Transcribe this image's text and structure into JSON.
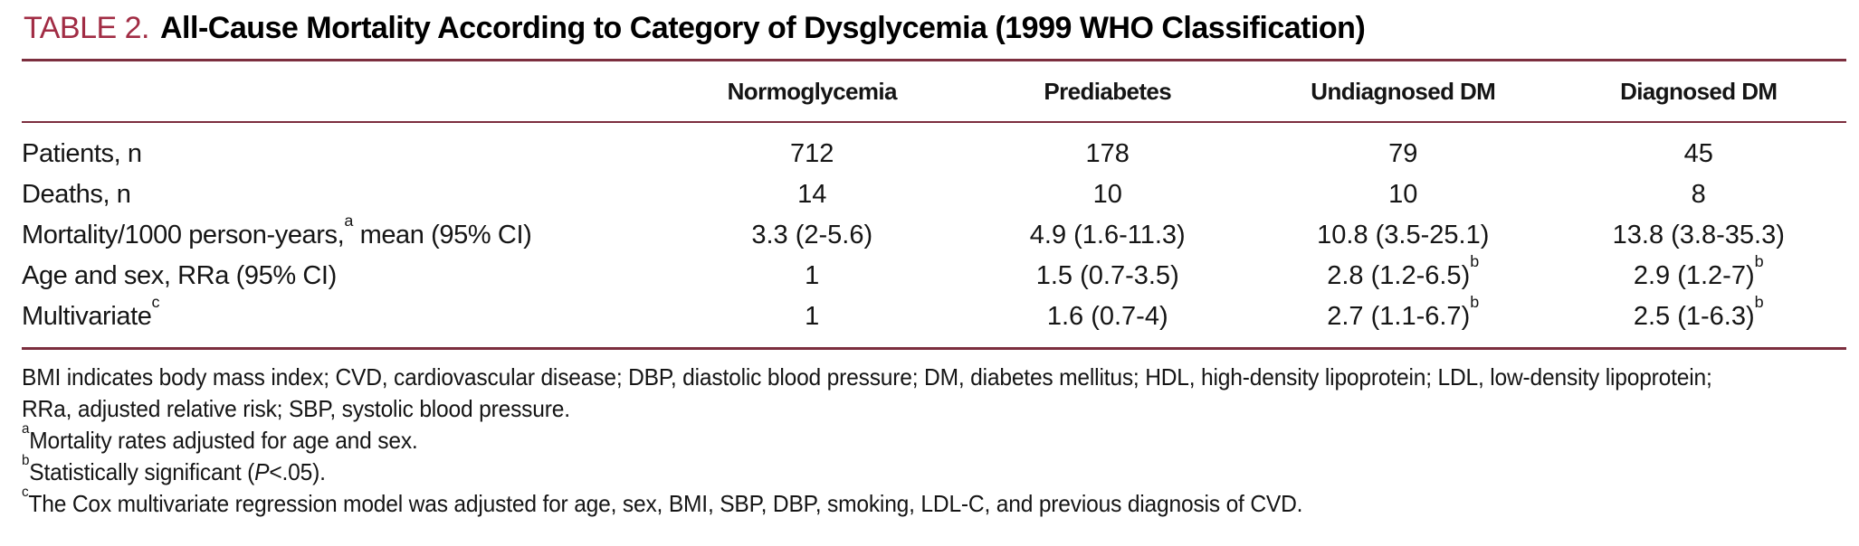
{
  "colors": {
    "accent": "#a12c44",
    "rule": "#7c2e3e"
  },
  "title": {
    "label": "TABLE 2.",
    "text": "All-Cause Mortality According to Category of Dysglycemia (1999 WHO Classification)"
  },
  "table": {
    "columns": [
      "Normoglycemia",
      "Prediabetes",
      "Undiagnosed DM",
      "Diagnosed DM"
    ],
    "rows": [
      {
        "label_pre": "Patients, n",
        "label_sup": "",
        "label_post": "",
        "cells": [
          {
            "v": "712",
            "sup": ""
          },
          {
            "v": "178",
            "sup": ""
          },
          {
            "v": "79",
            "sup": ""
          },
          {
            "v": "45",
            "sup": ""
          }
        ]
      },
      {
        "label_pre": "Deaths, n",
        "label_sup": "",
        "label_post": "",
        "cells": [
          {
            "v": "14",
            "sup": ""
          },
          {
            "v": "10",
            "sup": ""
          },
          {
            "v": "10",
            "sup": ""
          },
          {
            "v": "8",
            "sup": ""
          }
        ]
      },
      {
        "label_pre": "Mortality/1000 person-years,",
        "label_sup": "a",
        "label_post": " mean (95% CI)",
        "cells": [
          {
            "v": "3.3 (2-5.6)",
            "sup": ""
          },
          {
            "v": "4.9 (1.6-11.3)",
            "sup": ""
          },
          {
            "v": "10.8 (3.5-25.1)",
            "sup": ""
          },
          {
            "v": "13.8 (3.8-35.3)",
            "sup": ""
          }
        ]
      },
      {
        "label_pre": "Age and sex, RRa (95% CI)",
        "label_sup": "",
        "label_post": "",
        "cells": [
          {
            "v": "1",
            "sup": ""
          },
          {
            "v": "1.5 (0.7-3.5)",
            "sup": ""
          },
          {
            "v": "2.8 (1.2-6.5)",
            "sup": "b"
          },
          {
            "v": "2.9 (1.2-7)",
            "sup": "b"
          }
        ]
      },
      {
        "label_pre": "Multivariate",
        "label_sup": "c",
        "label_post": "",
        "cells": [
          {
            "v": "1",
            "sup": ""
          },
          {
            "v": "1.6 (0.7-4)",
            "sup": ""
          },
          {
            "v": "2.7 (1.1-6.7)",
            "sup": "b"
          },
          {
            "v": "2.5 (1-6.3)",
            "sup": "b"
          }
        ]
      }
    ]
  },
  "footnotes": {
    "abbrev_lines": [
      "BMI indicates body mass index; CVD, cardiovascular disease; DBP, diastolic blood pressure; DM, diabetes mellitus; HDL, high-density lipoprotein; LDL, low-density lipoprotein;",
      "RRa, adjusted relative risk; SBP, systolic blood pressure."
    ],
    "a": {
      "sup": "a",
      "text": "Mortality rates adjusted for age and sex."
    },
    "b": {
      "sup": "b",
      "pre": "Statistically significant (",
      "italic": "P",
      "post": "<.05)."
    },
    "c": {
      "sup": "c",
      "text": "The Cox multivariate regression model was adjusted for age, sex, BMI, SBP, DBP, smoking, LDL-C, and previous diagnosis of CVD."
    }
  }
}
